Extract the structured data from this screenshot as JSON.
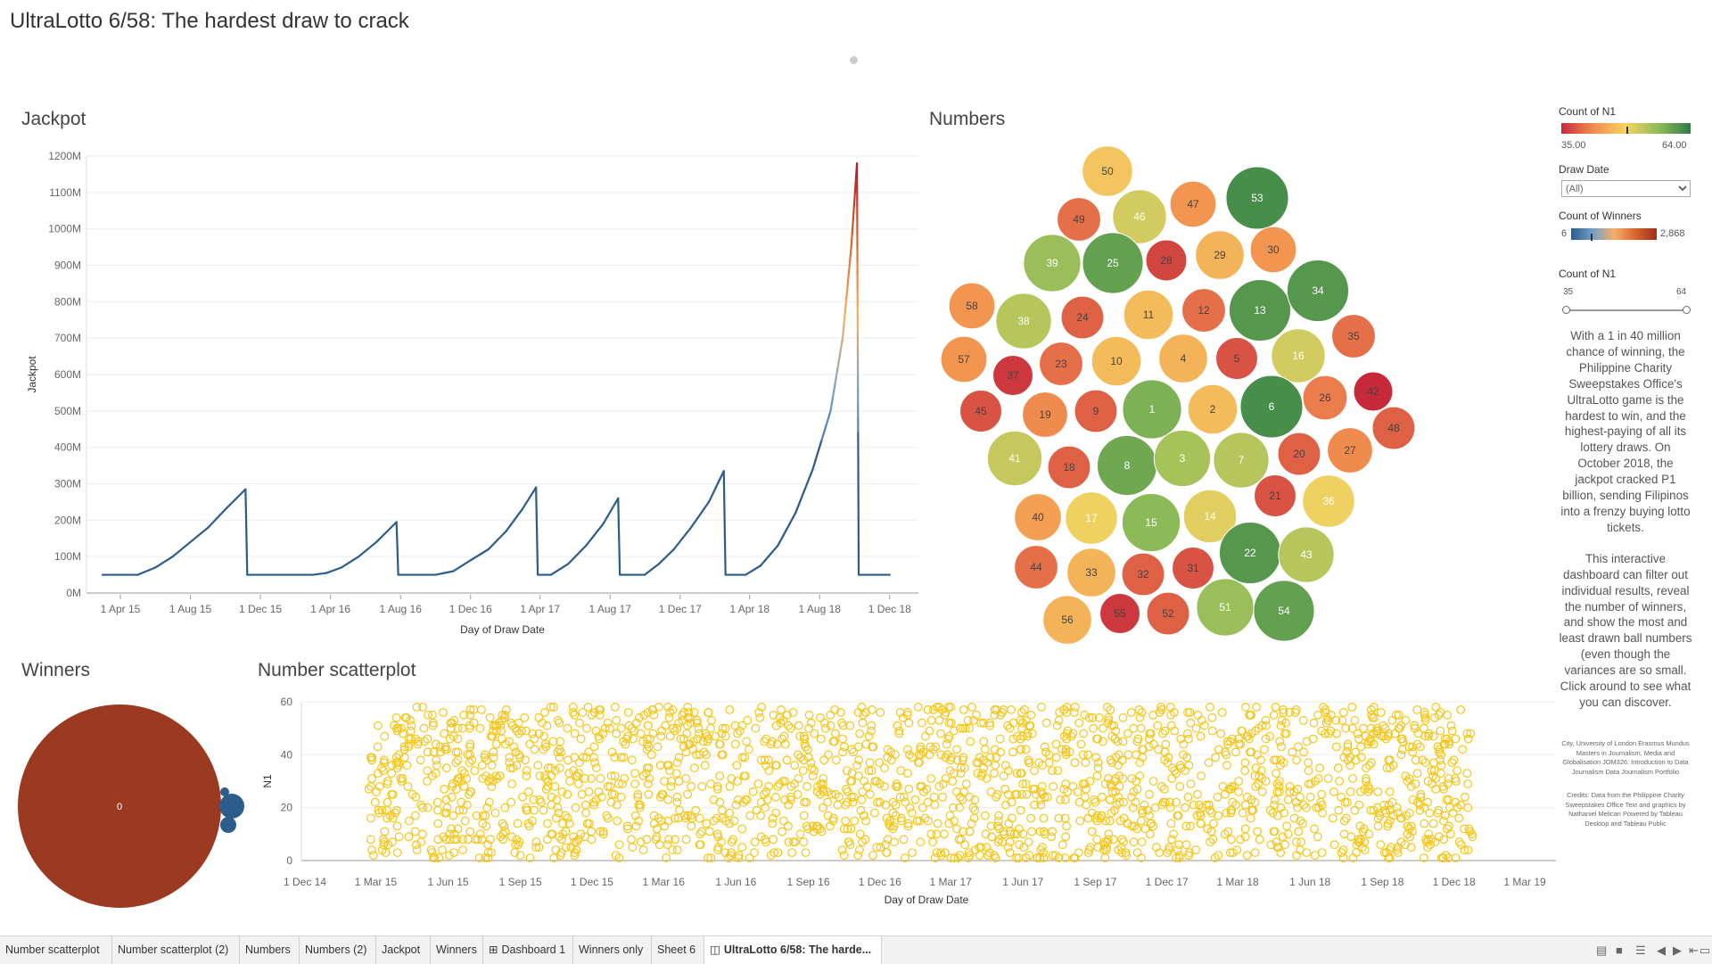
{
  "page_title": "UltraLotto 6/58: The hardest draw to crack",
  "sections": {
    "jackpot": "Jackpot",
    "numbers": "Numbers",
    "winners": "Winners",
    "scatter": "Number scatterplot"
  },
  "sidebar": {
    "count_n1_title": "Count of N1",
    "count_n1_min": "35.00",
    "count_n1_max": "64.00",
    "draw_date_title": "Draw Date",
    "draw_date_value": "(All)",
    "count_winners_title": "Count of Winners",
    "count_winners_min": "6",
    "count_winners_max": "2,868",
    "slider_title": "Count of N1",
    "slider_min": "35",
    "slider_max": "64",
    "slider_range": [
      35,
      64
    ],
    "description_1": "With a 1 in 40 million chance of winning, the Philippine Charity Sweepstakes Office's UltraLotto game is the hardest to win, and the highest-paying of all its lottery draws. On October 2018, the jackpot cracked P1 billion, sending Filipinos into a frenzy buying lotto tickets.",
    "description_2": "This interactive dashboard can filter out individual results, reveal the number of winners, and show the most and least drawn ball numbers (even though the variances are so small. Click around to see what you can discover.",
    "credits_1": "City, University of London Erasmus Mundus Masters in Journalism, Media and Globalisation JOM326: Introduction to Data Journalism Data Journalism Portfolio",
    "credits_2": "Credits: Data from the Philippine Charity Sweepstakes Office Text and graphics by Nathaniel Melican Powered by Tableau Desktop and Tableau Public",
    "ramp_colors": {
      "n1": [
        "#c62a3a",
        "#f28e4f",
        "#f5d362",
        "#8fbc58",
        "#2c7d45"
      ],
      "winners": [
        "#2b5c8a",
        "#6f9fc9",
        "#f5b06a",
        "#d9652e",
        "#9e2f18"
      ]
    }
  },
  "tabs": [
    {
      "label": "Number scatterplot"
    },
    {
      "label": "Number scatterplot (2)"
    },
    {
      "label": "Numbers"
    },
    {
      "label": "Numbers (2)"
    },
    {
      "label": "Jackpot"
    },
    {
      "label": "Winners"
    },
    {
      "label": "Dashboard 1",
      "icon": "dashboard-icon"
    },
    {
      "label": "Winners only"
    },
    {
      "label": "Sheet 6"
    },
    {
      "label": "UltraLotto 6/58: The harde...",
      "icon": "story-icon",
      "active": true
    }
  ],
  "chart_data": [
    {
      "id": "jackpot",
      "type": "line",
      "title": "Jackpot",
      "xlabel": "Day of Draw Date",
      "ylabel": "Jackpot",
      "ylim": [
        0,
        1200
      ],
      "y_unit": "M",
      "y_ticks": [
        "0M",
        "100M",
        "200M",
        "300M",
        "400M",
        "500M",
        "600M",
        "700M",
        "800M",
        "900M",
        "1000M",
        "1100M",
        "1200M"
      ],
      "x_ticks": [
        "1 Apr 15",
        "1 Aug 15",
        "1 Dec 15",
        "1 Apr 16",
        "1 Aug 16",
        "1 Dec 16",
        "1 Apr 17",
        "1 Aug 17",
        "1 Dec 17",
        "1 Apr 18",
        "1 Aug 18",
        "1 Dec 18"
      ],
      "x_tick_dates": [
        "2015-04-01",
        "2015-08-01",
        "2015-12-01",
        "2016-04-01",
        "2016-08-01",
        "2016-12-01",
        "2017-04-01",
        "2017-08-01",
        "2017-12-01",
        "2018-04-01",
        "2018-08-01",
        "2018-12-01"
      ],
      "grid": true,
      "points": [
        [
          "2015-03-01",
          50
        ],
        [
          "2015-04-01",
          50
        ],
        [
          "2015-05-01",
          50
        ],
        [
          "2015-06-01",
          70
        ],
        [
          "2015-07-01",
          100
        ],
        [
          "2015-08-01",
          140
        ],
        [
          "2015-09-01",
          180
        ],
        [
          "2015-10-01",
          230
        ],
        [
          "2015-11-05",
          285
        ],
        [
          "2015-11-08",
          50
        ],
        [
          "2016-01-01",
          50
        ],
        [
          "2016-03-01",
          50
        ],
        [
          "2016-03-25",
          55
        ],
        [
          "2016-04-20",
          70
        ],
        [
          "2016-05-20",
          100
        ],
        [
          "2016-06-20",
          140
        ],
        [
          "2016-07-25",
          195
        ],
        [
          "2016-07-28",
          50
        ],
        [
          "2016-10-01",
          50
        ],
        [
          "2016-11-01",
          60
        ],
        [
          "2016-12-01",
          90
        ],
        [
          "2017-01-01",
          120
        ],
        [
          "2017-02-01",
          170
        ],
        [
          "2017-03-01",
          230
        ],
        [
          "2017-03-25",
          290
        ],
        [
          "2017-03-28",
          50
        ],
        [
          "2017-04-20",
          50
        ],
        [
          "2017-05-20",
          80
        ],
        [
          "2017-06-20",
          130
        ],
        [
          "2017-07-20",
          190
        ],
        [
          "2017-08-15",
          260
        ],
        [
          "2017-08-18",
          50
        ],
        [
          "2017-09-30",
          50
        ],
        [
          "2017-10-25",
          80
        ],
        [
          "2017-11-20",
          120
        ],
        [
          "2017-12-20",
          180
        ],
        [
          "2018-01-20",
          250
        ],
        [
          "2018-02-15",
          335
        ],
        [
          "2018-02-18",
          50
        ],
        [
          "2018-03-25",
          50
        ],
        [
          "2018-04-20",
          75
        ],
        [
          "2018-05-20",
          130
        ],
        [
          "2018-06-20",
          220
        ],
        [
          "2018-07-20",
          340
        ],
        [
          "2018-08-20",
          500
        ],
        [
          "2018-09-10",
          700
        ],
        [
          "2018-09-25",
          950
        ],
        [
          "2018-10-05",
          1180
        ],
        [
          "2018-10-08",
          50
        ],
        [
          "2018-12-01",
          50
        ]
      ],
      "color_ramp": [
        "#2b5c8a",
        "#6f9fc9",
        "#f5b06a",
        "#d9652e",
        "#b2182b"
      ]
    },
    {
      "id": "numbers",
      "type": "packed-bubble",
      "title": "Numbers",
      "measure": "Count of N1",
      "color_range": [
        35,
        64
      ],
      "bubbles": [
        {
          "label": "50",
          "value": 48
        },
        {
          "label": "46",
          "value": 52
        },
        {
          "label": "47",
          "value": 43
        },
        {
          "label": "53",
          "value": 62
        },
        {
          "label": "49",
          "value": 40
        },
        {
          "label": "39",
          "value": 56
        },
        {
          "label": "25",
          "value": 60
        },
        {
          "label": "28",
          "value": 37
        },
        {
          "label": "29",
          "value": 46
        },
        {
          "label": "30",
          "value": 43
        },
        {
          "label": "58",
          "value": 43
        },
        {
          "label": "38",
          "value": 54
        },
        {
          "label": "24",
          "value": 39
        },
        {
          "label": "11",
          "value": 47
        },
        {
          "label": "12",
          "value": 40
        },
        {
          "label": "13",
          "value": 61
        },
        {
          "label": "34",
          "value": 61
        },
        {
          "label": "57",
          "value": 43
        },
        {
          "label": "37",
          "value": 36
        },
        {
          "label": "23",
          "value": 40
        },
        {
          "label": "10",
          "value": 47
        },
        {
          "label": "4",
          "value": 46
        },
        {
          "label": "5",
          "value": 38
        },
        {
          "label": "16",
          "value": 52
        },
        {
          "label": "35",
          "value": 40
        },
        {
          "label": "42",
          "value": 35
        },
        {
          "label": "45",
          "value": 38
        },
        {
          "label": "19",
          "value": 42
        },
        {
          "label": "9",
          "value": 39
        },
        {
          "label": "1",
          "value": 58
        },
        {
          "label": "2",
          "value": 47
        },
        {
          "label": "6",
          "value": 62
        },
        {
          "label": "26",
          "value": 41
        },
        {
          "label": "48",
          "value": 39
        },
        {
          "label": "41",
          "value": 53
        },
        {
          "label": "18",
          "value": 39
        },
        {
          "label": "8",
          "value": 59
        },
        {
          "label": "3",
          "value": 55
        },
        {
          "label": "7",
          "value": 54
        },
        {
          "label": "20",
          "value": 39
        },
        {
          "label": "27",
          "value": 42
        },
        {
          "label": "40",
          "value": 44
        },
        {
          "label": "17",
          "value": 50
        },
        {
          "label": "15",
          "value": 57
        },
        {
          "label": "14",
          "value": 51
        },
        {
          "label": "21",
          "value": 38
        },
        {
          "label": "36",
          "value": 50
        },
        {
          "label": "44",
          "value": 40
        },
        {
          "label": "33",
          "value": 46
        },
        {
          "label": "32",
          "value": 39
        },
        {
          "label": "31",
          "value": 38
        },
        {
          "label": "22",
          "value": 61
        },
        {
          "label": "43",
          "value": 54
        },
        {
          "label": "56",
          "value": 46
        },
        {
          "label": "55",
          "value": 36
        },
        {
          "label": "52",
          "value": 39
        },
        {
          "label": "51",
          "value": 56
        },
        {
          "label": "54",
          "value": 60
        }
      ]
    },
    {
      "id": "winners",
      "type": "packed-bubble",
      "title": "Winners",
      "bubbles": [
        {
          "label": "0",
          "value": 2868,
          "color": "#9b3a20"
        },
        {
          "label": "",
          "value": 48,
          "color": "#2b5c8a"
        },
        {
          "label": "",
          "value": 18,
          "color": "#2b5c8a"
        },
        {
          "label": "",
          "value": 6,
          "color": "#2b5c8a"
        }
      ]
    },
    {
      "id": "scatter",
      "type": "scatter",
      "title": "Number scatterplot",
      "xlabel": "Day of Draw Date",
      "ylabel": "N1",
      "ylim": [
        0,
        60
      ],
      "y_ticks": [
        "0",
        "20",
        "40",
        "60"
      ],
      "x_ticks": [
        "1 Dec 14",
        "1 Mar 15",
        "1 Jun 15",
        "1 Sep 15",
        "1 Dec 15",
        "1 Mar 16",
        "1 Jun 16",
        "1 Sep 16",
        "1 Dec 16",
        "1 Mar 17",
        "1 Jun 17",
        "1 Sep 17",
        "1 Dec 17",
        "1 Mar 18",
        "1 Jun 18",
        "1 Sep 18",
        "1 Dec 18",
        "1 Mar 19"
      ],
      "x_range": [
        "2015-02-20",
        "2018-12-25"
      ],
      "point_color": "#f5c518",
      "n_points": 2000,
      "values_min": 1,
      "values_max": 58
    }
  ]
}
